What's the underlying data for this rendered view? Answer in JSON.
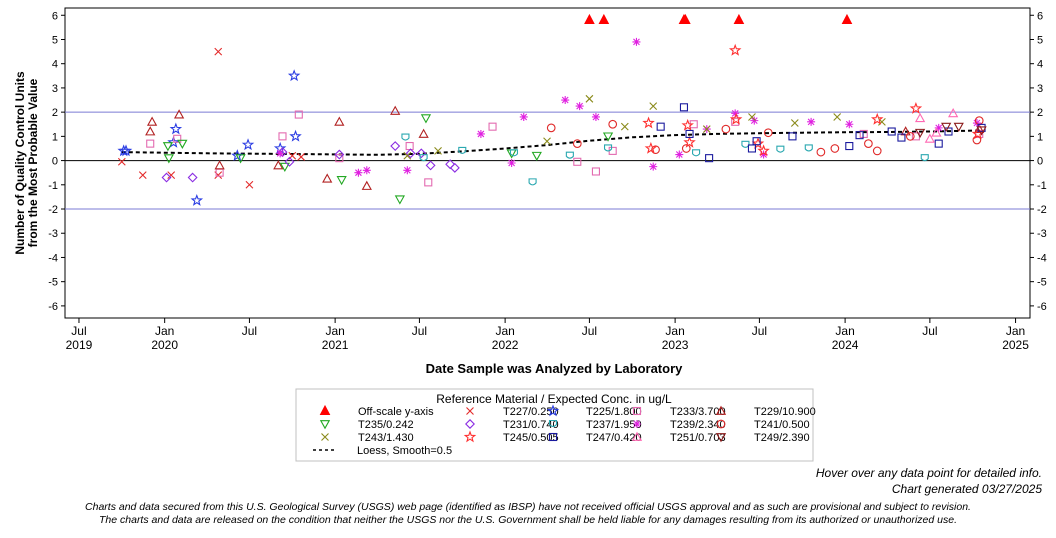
{
  "chart_data": {
    "type": "scatter",
    "ylabel_line1": "Number of Quality Control Units",
    "ylabel_line2": "from the Most Probable Value",
    "xlabel": "Date Sample was Analyzed by Laboratory",
    "ylim": [
      -6.5,
      6.3
    ],
    "yticks": [
      "6",
      "5",
      "4",
      "3",
      "2",
      "1",
      "0",
      "-1",
      "-2",
      "-3",
      "-4",
      "-5",
      "-6"
    ],
    "xlim": [
      "2019-06-01",
      "2025-02-01"
    ],
    "xticks": [
      {
        "date": "2019-07-01",
        "label1": "Jul",
        "label2": "2019"
      },
      {
        "date": "2020-01-01",
        "label1": "Jan",
        "label2": "2020"
      },
      {
        "date": "2020-07-01",
        "label1": "Jul",
        "label2": ""
      },
      {
        "date": "2021-01-01",
        "label1": "Jan",
        "label2": "2021"
      },
      {
        "date": "2021-07-01",
        "label1": "Jul",
        "label2": ""
      },
      {
        "date": "2022-01-01",
        "label1": "Jan",
        "label2": "2022"
      },
      {
        "date": "2022-07-01",
        "label1": "Jul",
        "label2": ""
      },
      {
        "date": "2023-01-01",
        "label1": "Jan",
        "label2": "2023"
      },
      {
        "date": "2023-07-01",
        "label1": "Jul",
        "label2": ""
      },
      {
        "date": "2024-01-01",
        "label1": "Jan",
        "label2": "2024"
      },
      {
        "date": "2024-07-01",
        "label1": "Jul",
        "label2": ""
      },
      {
        "date": "2025-01-01",
        "label1": "Jan",
        "label2": "2025"
      }
    ],
    "reference_lines": [
      2,
      0,
      -2
    ],
    "grid": false,
    "legend_title": "Reference Material / Expected Conc. in ug/L",
    "legend_placement": "bottom",
    "series": [
      {
        "name": "Off-scale y-axis",
        "marker": "triangle-filled",
        "color": "#ff0000",
        "points": [
          [
            "2022-07-01",
            6
          ],
          [
            "2022-08-01",
            6
          ],
          [
            "2023-01-20",
            6
          ],
          [
            "2023-01-23",
            6
          ],
          [
            "2023-05-18",
            6
          ],
          [
            "2024-01-05",
            6
          ]
        ]
      },
      {
        "name": "T227/0.250",
        "marker": "x",
        "color": "#e32a2a",
        "points": [
          [
            "2019-11-15",
            -0.6
          ],
          [
            "2019-10-01",
            -0.05
          ],
          [
            "2020-01-15",
            -0.6
          ],
          [
            "2020-04-25",
            4.5
          ],
          [
            "2020-04-25",
            -0.6
          ],
          [
            "2020-07-01",
            -1.0
          ],
          [
            "2020-10-01",
            0.2
          ],
          [
            "2020-10-20",
            0.15
          ]
        ]
      },
      {
        "name": "T225/1.800",
        "marker": "star",
        "color": "#2a3ce3",
        "points": [
          [
            "2019-10-05",
            0.4
          ],
          [
            "2019-10-10",
            0.4
          ],
          [
            "2020-01-20",
            0.75
          ],
          [
            "2020-01-25",
            1.3
          ],
          [
            "2020-03-10",
            -1.65
          ],
          [
            "2020-06-05",
            0.2
          ],
          [
            "2020-06-28",
            0.65
          ],
          [
            "2020-09-05",
            0.5
          ],
          [
            "2020-10-05",
            3.5
          ],
          [
            "2020-10-08",
            1.0
          ]
        ]
      },
      {
        "name": "T233/3.700",
        "marker": "square",
        "color": "#e36ab0",
        "points": [
          [
            "2019-12-01",
            0.7
          ],
          [
            "2020-01-28",
            0.9
          ],
          [
            "2020-04-28",
            -0.5
          ],
          [
            "2020-09-10",
            1.0
          ],
          [
            "2020-10-15",
            1.9
          ],
          [
            "2021-01-10",
            0.1
          ],
          [
            "2021-06-10",
            0.6
          ],
          [
            "2021-07-20",
            -0.9
          ],
          [
            "2021-12-05",
            1.4
          ],
          [
            "2022-06-05",
            -0.05
          ],
          [
            "2022-07-15",
            -0.45
          ],
          [
            "2022-08-20",
            0.4
          ],
          [
            "2023-02-10",
            1.5
          ],
          [
            "2023-05-10",
            1.6
          ],
          [
            "2024-02-10",
            1.1
          ],
          [
            "2024-06-01",
            1.0
          ],
          [
            "2024-10-15",
            1.1
          ]
        ]
      },
      {
        "name": "T229/10.900",
        "marker": "triangle",
        "color": "#b22222",
        "points": [
          [
            "2019-12-01",
            1.2
          ],
          [
            "2019-12-05",
            1.6
          ],
          [
            "2020-02-01",
            1.9
          ],
          [
            "2020-04-28",
            -0.2
          ],
          [
            "2020-09-01",
            -0.2
          ],
          [
            "2020-12-15",
            -0.75
          ],
          [
            "2021-01-10",
            1.6
          ],
          [
            "2021-03-10",
            -1.05
          ],
          [
            "2021-05-10",
            2.05
          ],
          [
            "2021-07-10",
            1.1
          ],
          [
            "2024-05-10",
            1.2
          ],
          [
            "2024-10-15",
            1.3
          ]
        ]
      },
      {
        "name": "T235/0.242",
        "marker": "triangle-down",
        "color": "#22a822",
        "points": [
          [
            "2020-01-08",
            0.6
          ],
          [
            "2020-01-10",
            0.1
          ],
          [
            "2020-02-08",
            0.7
          ],
          [
            "2020-06-12",
            0.1
          ],
          [
            "2020-09-15",
            -0.25
          ],
          [
            "2021-01-15",
            -0.8
          ],
          [
            "2021-05-20",
            -1.6
          ],
          [
            "2021-07-15",
            1.75
          ],
          [
            "2022-01-15",
            0.3
          ],
          [
            "2022-03-10",
            0.2
          ],
          [
            "2022-08-10",
            1.0
          ]
        ]
      },
      {
        "name": "T231/0.740",
        "marker": "diamond",
        "color": "#8a2be2",
        "points": [
          [
            "2020-01-05",
            -0.7
          ],
          [
            "2020-03-01",
            -0.7
          ],
          [
            "2020-09-10",
            0.35
          ],
          [
            "2020-09-25",
            -0.05
          ],
          [
            "2021-01-10",
            0.25
          ],
          [
            "2021-05-10",
            0.6
          ],
          [
            "2021-06-12",
            0.3
          ],
          [
            "2021-07-05",
            0.3
          ],
          [
            "2021-07-25",
            -0.2
          ],
          [
            "2021-09-05",
            -0.15
          ],
          [
            "2021-09-15",
            -0.3
          ]
        ]
      },
      {
        "name": "T237/1.950",
        "marker": "shield",
        "color": "#2aa8b0",
        "points": [
          [
            "2021-06-01",
            0.95
          ],
          [
            "2021-07-10",
            0.1
          ],
          [
            "2021-10-01",
            0.4
          ],
          [
            "2022-01-20",
            0.3
          ],
          [
            "2022-03-01",
            -0.9
          ],
          [
            "2022-05-20",
            0.2
          ],
          [
            "2022-08-10",
            0.5
          ],
          [
            "2023-02-15",
            0.3
          ],
          [
            "2023-06-01",
            0.65
          ],
          [
            "2023-08-15",
            0.45
          ],
          [
            "2023-10-15",
            0.5
          ],
          [
            "2024-06-20",
            0.1
          ]
        ]
      },
      {
        "name": "T239/2.340",
        "marker": "asterisk",
        "color": "#e020e0",
        "points": [
          [
            "2020-09-05",
            0.3
          ],
          [
            "2021-02-20",
            -0.5
          ],
          [
            "2021-03-10",
            -0.4
          ],
          [
            "2021-06-05",
            -0.4
          ],
          [
            "2021-11-10",
            1.1
          ],
          [
            "2022-01-15",
            -0.1
          ],
          [
            "2022-02-10",
            1.8
          ],
          [
            "2022-05-10",
            2.5
          ],
          [
            "2022-06-10",
            2.25
          ],
          [
            "2022-07-15",
            1.8
          ],
          [
            "2022-10-10",
            4.9
          ],
          [
            "2022-11-15",
            -0.25
          ],
          [
            "2023-01-10",
            0.25
          ],
          [
            "2023-03-10",
            1.3
          ],
          [
            "2023-05-10",
            1.95
          ],
          [
            "2023-06-20",
            1.65
          ],
          [
            "2023-07-10",
            0.25
          ],
          [
            "2023-10-20",
            1.6
          ],
          [
            "2024-01-10",
            1.5
          ],
          [
            "2024-07-20",
            1.35
          ],
          [
            "2024-10-10",
            1.55
          ]
        ]
      },
      {
        "name": "T241/0.500",
        "marker": "circle",
        "color": "#e02a2a",
        "points": [
          [
            "2022-04-10",
            1.35
          ],
          [
            "2022-06-05",
            0.7
          ],
          [
            "2022-08-20",
            1.5
          ],
          [
            "2022-11-20",
            0.45
          ],
          [
            "2023-01-25",
            0.5
          ],
          [
            "2023-04-20",
            1.3
          ],
          [
            "2023-07-20",
            1.15
          ],
          [
            "2023-11-10",
            0.35
          ],
          [
            "2023-12-10",
            0.5
          ],
          [
            "2024-02-20",
            0.7
          ],
          [
            "2024-03-10",
            0.4
          ],
          [
            "2024-05-20",
            1.0
          ],
          [
            "2024-10-10",
            0.85
          ],
          [
            "2024-10-15",
            1.65
          ]
        ]
      },
      {
        "name": "T243/1.430",
        "marker": "x",
        "color": "#8a8a1a",
        "points": [
          [
            "2021-06-05",
            0.2
          ],
          [
            "2021-08-10",
            0.4
          ],
          [
            "2022-04-01",
            0.8
          ],
          [
            "2022-07-01",
            2.55
          ],
          [
            "2022-09-15",
            1.4
          ],
          [
            "2022-11-15",
            2.25
          ],
          [
            "2023-03-10",
            1.3
          ],
          [
            "2023-06-15",
            1.8
          ],
          [
            "2023-09-15",
            1.55
          ],
          [
            "2023-12-15",
            1.8
          ],
          [
            "2024-03-20",
            1.6
          ]
        ]
      },
      {
        "name": "T245/0.505",
        "marker": "star",
        "color": "#ff3030",
        "points": [
          [
            "2022-11-05",
            1.55
          ],
          [
            "2022-11-10",
            0.5
          ],
          [
            "2023-01-28",
            1.45
          ],
          [
            "2023-02-01",
            0.75
          ],
          [
            "2023-05-10",
            4.55
          ],
          [
            "2023-05-12",
            1.7
          ],
          [
            "2023-06-28",
            0.7
          ],
          [
            "2023-07-10",
            0.4
          ],
          [
            "2024-03-10",
            1.7
          ],
          [
            "2024-06-01",
            2.15
          ],
          [
            "2024-10-12",
            1.1
          ]
        ]
      },
      {
        "name": "T247/0.420",
        "marker": "square",
        "color": "#1a1a9e",
        "points": [
          [
            "2022-12-01",
            1.4
          ],
          [
            "2023-01-20",
            2.2
          ],
          [
            "2023-02-01",
            1.1
          ],
          [
            "2023-03-15",
            0.1
          ],
          [
            "2023-06-15",
            0.5
          ],
          [
            "2023-06-25",
            0.8
          ],
          [
            "2023-09-10",
            1.0
          ],
          [
            "2024-01-10",
            0.6
          ],
          [
            "2024-02-01",
            1.05
          ],
          [
            "2024-04-10",
            1.2
          ],
          [
            "2024-05-01",
            0.95
          ],
          [
            "2024-07-20",
            0.7
          ],
          [
            "2024-08-10",
            1.2
          ],
          [
            "2024-10-20",
            1.35
          ]
        ]
      },
      {
        "name": "T251/0.703",
        "marker": "triangle",
        "color": "#ff69b4",
        "points": [
          [
            "2024-06-10",
            1.75
          ],
          [
            "2024-07-01",
            0.9
          ],
          [
            "2024-07-15",
            1.15
          ],
          [
            "2024-08-20",
            1.95
          ]
        ]
      },
      {
        "name": "T249/2.390",
        "marker": "triangle-down",
        "color": "#8b1a1a",
        "points": [
          [
            "2024-06-10",
            1.15
          ],
          [
            "2024-08-05",
            1.4
          ],
          [
            "2024-09-01",
            1.4
          ],
          [
            "2024-10-20",
            1.25
          ]
        ]
      },
      {
        "name": "Loess, Smooth=0.5",
        "marker": "line",
        "color": "#000000",
        "points": [
          [
            "2019-10-01",
            0.35
          ],
          [
            "2020-04-01",
            0.3
          ],
          [
            "2020-10-01",
            0.27
          ],
          [
            "2021-04-01",
            0.24
          ],
          [
            "2021-07-01",
            0.28
          ],
          [
            "2021-10-01",
            0.38
          ],
          [
            "2022-01-01",
            0.5
          ],
          [
            "2022-04-01",
            0.64
          ],
          [
            "2022-07-01",
            0.82
          ],
          [
            "2022-10-01",
            0.96
          ],
          [
            "2023-01-01",
            1.05
          ],
          [
            "2023-04-01",
            1.1
          ],
          [
            "2023-07-01",
            1.13
          ],
          [
            "2023-10-01",
            1.15
          ],
          [
            "2024-01-01",
            1.17
          ],
          [
            "2024-04-01",
            1.18
          ],
          [
            "2024-07-01",
            1.2
          ],
          [
            "2024-10-20",
            1.24
          ]
        ]
      }
    ]
  },
  "footer": {
    "hover_note": "Hover over any data point for detailed info.",
    "generated": "Chart generated 03/27/2025",
    "disclaimer_line1": "Charts and data secured from this U.S. Geological Survey (USGS) web page (identified as IBSP) have not received official USGS approval and as such are provisional and subject to revision.",
    "disclaimer_line2": "The charts and data are released on the condition that neither the USGS nor the U.S. Government shall be held liable for any damages resulting from its authorized or unauthorized use."
  }
}
